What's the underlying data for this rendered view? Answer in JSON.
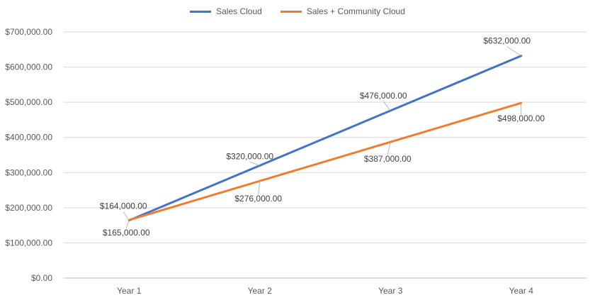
{
  "chart_data": {
    "type": "line",
    "categories": [
      "Year 1",
      "Year 2",
      "Year 3",
      "Year 4"
    ],
    "series": [
      {
        "name": "Sales Cloud",
        "color": "#4472C4",
        "values": [
          164000,
          320000,
          476000,
          632000
        ],
        "labels": [
          "$164,000.00",
          "$320,000.00",
          "$476,000.00",
          "$632,000.00"
        ]
      },
      {
        "name": "Sales + Community Cloud",
        "color": "#ED7D31",
        "values": [
          165000,
          276000,
          387000,
          498000
        ],
        "labels": [
          "$165,000.00",
          "$276,000.00",
          "$387,000.00",
          "$498,000.00"
        ]
      }
    ],
    "ylim": [
      0,
      700000
    ],
    "yticks": [
      0,
      100000,
      200000,
      300000,
      400000,
      500000,
      600000,
      700000
    ],
    "ytick_labels": [
      "$0.00",
      "$100,000.00",
      "$200,000.00",
      "$300,000.00",
      "$400,000.00",
      "$500,000.00",
      "$600,000.00",
      "$700,000.00"
    ],
    "grid": true,
    "legend_position": "top"
  }
}
